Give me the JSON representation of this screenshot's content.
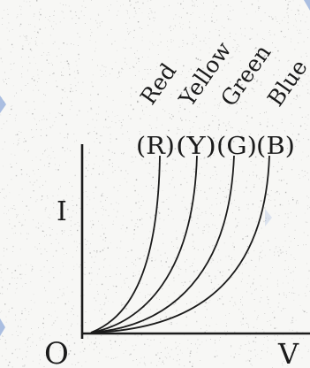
{
  "axes": {
    "origin_label": "O",
    "y_label": "I",
    "x_label": "V"
  },
  "curves": [
    {
      "name": "Red",
      "symbol": "(R)"
    },
    {
      "name": "Yellow",
      "symbol": "(Y)"
    },
    {
      "name": "Green",
      "symbol": "(G)"
    },
    {
      "name": "Blue",
      "symbol": "(B)"
    }
  ],
  "colors": {
    "ink": "#1b1b1b",
    "paper": "#f7f7f5",
    "speckle": "#9a9a9a",
    "edge_accent": "#6b8fd0"
  }
}
